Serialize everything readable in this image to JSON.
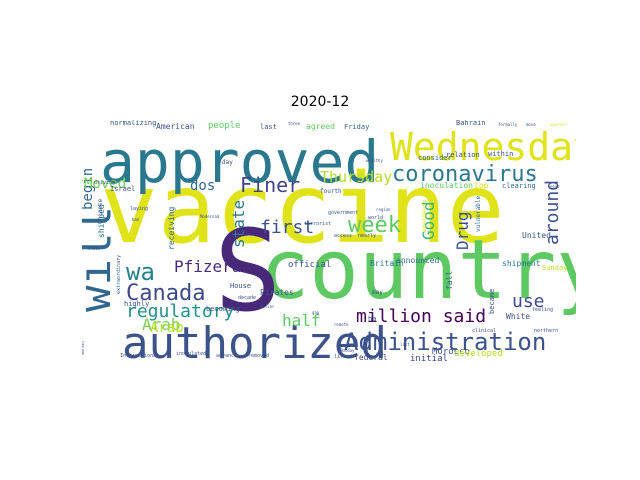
{
  "figure": {
    "title": "2020-12"
  },
  "words": [
    {
      "text": "vaccine",
      "weight": 1.0,
      "color": "#dfe318",
      "vertical": false
    },
    {
      "text": "country",
      "weight": 0.78,
      "color": "#5ec962",
      "vertical": false
    },
    {
      "text": "S",
      "weight": 0.75,
      "color": "#482878",
      "vertical": false
    },
    {
      "text": "approved",
      "weight": 0.65,
      "color": "#2a788e",
      "vertical": false
    },
    {
      "text": "authorized",
      "weight": 0.52,
      "color": "#3b528b",
      "vertical": false
    },
    {
      "text": "will",
      "weight": 0.45,
      "color": "#31688e",
      "vertical": true
    },
    {
      "text": "Wednesday",
      "weight": 0.45,
      "color": "#dfe318",
      "vertical": false
    },
    {
      "text": "Administration",
      "weight": 0.3,
      "color": "#3b528b",
      "vertical": false
    },
    {
      "text": "coronavirus",
      "weight": 0.25,
      "color": "#2a788e",
      "vertical": false
    },
    {
      "text": "Canada",
      "weight": 0.2,
      "color": "#3e4989",
      "vertical": false
    },
    {
      "text": "regulatory",
      "weight": 0.2,
      "color": "#21918c",
      "vertical": false
    },
    {
      "text": "wa",
      "weight": 0.22,
      "color": "#26828e",
      "vertical": false
    },
    {
      "text": "week",
      "weight": 0.2,
      "color": "#5ec962",
      "vertical": false
    },
    {
      "text": "Finer",
      "weight": 0.2,
      "color": "#414487",
      "vertical": false
    },
    {
      "text": "million said",
      "weight": 0.18,
      "color": "#440154",
      "vertical": false
    },
    {
      "text": "Thursday",
      "weight": 0.15,
      "color": "#b5de2b",
      "vertical": false
    },
    {
      "text": "around",
      "weight": 0.15,
      "color": "#3b528b",
      "vertical": true
    },
    {
      "text": "first",
      "weight": 0.15,
      "color": "#3b528b",
      "vertical": false
    },
    {
      "text": "Pfizerâ",
      "weight": 0.15,
      "color": "#472c7a",
      "vertical": false
    },
    {
      "text": "Arab",
      "weight": 0.14,
      "color": "#7ad151",
      "vertical": false
    },
    {
      "text": "half",
      "weight": 0.14,
      "color": "#5ec962",
      "vertical": false
    },
    {
      "text": "Drug",
      "weight": 0.13,
      "color": "#3b528b",
      "vertical": true
    },
    {
      "text": "Good",
      "weight": 0.13,
      "color": "#35b779",
      "vertical": true
    },
    {
      "text": "state",
      "weight": 0.13,
      "color": "#2a788e",
      "vertical": true
    },
    {
      "text": "use",
      "weight": 0.13,
      "color": "#3e4989",
      "vertical": false
    },
    {
      "text": "begin",
      "weight": 0.12,
      "color": "#31688e",
      "vertical": true
    },
    {
      "text": "dos",
      "weight": 0.12,
      "color": "#31688e",
      "vertical": false
    },
    {
      "text": "Moved",
      "weight": 0.12,
      "color": "#6ece58",
      "vertical": false
    },
    {
      "text": "Arab",
      "weight": 0.11,
      "color": "#b5de2b",
      "vertical": false
    },
    {
      "text": "people",
      "weight": 0.09,
      "color": "#5ec962",
      "vertical": false
    },
    {
      "text": "official",
      "weight": 0.08,
      "color": "#3b528b",
      "vertical": false
    },
    {
      "text": "Britain",
      "weight": 0.07,
      "color": "#2a788e",
      "vertical": false
    },
    {
      "text": "shipped",
      "weight": 0.07,
      "color": "#2a788e",
      "vertical": true
    },
    {
      "text": "federal",
      "weight": 0.07,
      "color": "#3e4989",
      "vertical": false
    },
    {
      "text": "initial",
      "weight": 0.07,
      "color": "#3e4989",
      "vertical": false
    },
    {
      "text": "Morocco",
      "weight": 0.07,
      "color": "#3b528b",
      "vertical": false
    },
    {
      "text": "developed",
      "weight": 0.07,
      "color": "#b5de2b",
      "vertical": false
    },
    {
      "text": "shipment",
      "weight": 0.06,
      "color": "#2a788e",
      "vertical": false
    },
    {
      "text": "fall",
      "weight": 0.06,
      "color": "#31688e",
      "vertical": true
    },
    {
      "text": "United",
      "weight": 0.06,
      "color": "#3b528b",
      "vertical": false
    },
    {
      "text": "White",
      "weight": 0.06,
      "color": "#3b528b",
      "vertical": false
    },
    {
      "text": "announced",
      "weight": 0.06,
      "color": "#31688e",
      "vertical": false
    },
    {
      "text": "Pirates",
      "weight": 0.06,
      "color": "#3b528b",
      "vertical": false
    },
    {
      "text": "receiving",
      "weight": 0.06,
      "color": "#31688e",
      "vertical": true
    },
    {
      "text": "agreed",
      "weight": 0.06,
      "color": "#5ec962",
      "vertical": false
    },
    {
      "text": "consider",
      "weight": 0.06,
      "color": "#31688e",
      "vertical": false
    },
    {
      "text": "inoculation",
      "weight": 0.06,
      "color": "#5ec962",
      "vertical": false
    },
    {
      "text": "top",
      "weight": 0.06,
      "color": "#dfe318",
      "vertical": false
    },
    {
      "text": "clearing",
      "weight": 0.06,
      "color": "#31688e",
      "vertical": false
    },
    {
      "text": "Bahrain",
      "weight": 0.06,
      "color": "#3b528b",
      "vertical": false
    },
    {
      "text": "American",
      "weight": 0.06,
      "color": "#3b528b",
      "vertical": false
    },
    {
      "text": "Friday",
      "weight": 0.05,
      "color": "#31688e",
      "vertical": false
    },
    {
      "text": "last",
      "weight": 0.05,
      "color": "#3b528b",
      "vertical": false
    },
    {
      "text": "normalizing",
      "weight": 0.05,
      "color": "#3b528b",
      "vertical": false
    },
    {
      "text": "relation",
      "weight": 0.05,
      "color": "#3b528b",
      "vertical": false
    },
    {
      "text": "within",
      "weight": 0.05,
      "color": "#3b528b",
      "vertical": false
    },
    {
      "text": "Israel",
      "weight": 0.05,
      "color": "#3b528b",
      "vertical": false
    },
    {
      "text": "House",
      "weight": 0.05,
      "color": "#3b528b",
      "vertical": false
    },
    {
      "text": "becoming",
      "weight": 0.05,
      "color": "#3b528b",
      "vertical": false
    },
    {
      "text": "highly",
      "weight": 0.05,
      "color": "#3b528b",
      "vertical": false
    },
    {
      "text": "ha",
      "weight": 0.05,
      "color": "#3b528b",
      "vertical": false
    },
    {
      "text": "became",
      "weight": 0.05,
      "color": "#3b528b",
      "vertical": true
    },
    {
      "text": "Sunday",
      "weight": 0.05,
      "color": "#b5de2b",
      "vertical": false
    },
    {
      "text": "may",
      "weight": 0.04,
      "color": "#3b528b",
      "vertical": false
    },
    {
      "text": "emergency",
      "weight": 0.04,
      "color": "#dfe318",
      "vertical": true
    },
    {
      "text": "vulnerable",
      "weight": 0.04,
      "color": "#31688e",
      "vertical": true
    },
    {
      "text": "day",
      "weight": 0.04,
      "color": "#3b528b",
      "vertical": false
    },
    {
      "text": "fourth",
      "weight": 0.04,
      "color": "#3b528b",
      "vertical": false
    },
    {
      "text": "Chinese",
      "weight": 0.04,
      "color": "#3b528b",
      "vertical": true
    },
    {
      "text": "extraordinary",
      "weight": 0.03,
      "color": "#31688e",
      "vertical": true
    },
    {
      "text": "driving",
      "weight": 0.03,
      "color": "#3b528b",
      "vertical": false
    },
    {
      "text": "laying",
      "weight": 0.03,
      "color": "#3b528b",
      "vertical": false
    },
    {
      "text": "decade",
      "weight": 0.03,
      "color": "#3b528b",
      "vertical": false
    },
    {
      "text": "clinical",
      "weight": 0.03,
      "color": "#3b528b",
      "vertical": false
    },
    {
      "text": "northern",
      "weight": 0.03,
      "color": "#3b528b",
      "vertical": false
    },
    {
      "text": "feeling",
      "weight": 0.03,
      "color": "#3b528b",
      "vertical": false
    },
    {
      "text": "inoculated",
      "weight": 0.03,
      "color": "#3b528b",
      "vertical": false
    },
    {
      "text": "International",
      "weight": 0.03,
      "color": "#3b528b",
      "vertical": false
    },
    {
      "text": "advance",
      "weight": 0.03,
      "color": "#3b528b",
      "vertical": false
    },
    {
      "text": "removed",
      "weight": 0.03,
      "color": "#3b528b",
      "vertical": false
    },
    {
      "text": "lifted",
      "weight": 0.03,
      "color": "#3b528b",
      "vertical": false
    },
    {
      "text": "government",
      "weight": 0.03,
      "color": "#3b528b",
      "vertical": false
    },
    {
      "text": "access",
      "weight": 0.03,
      "color": "#3b528b",
      "vertical": false
    },
    {
      "text": "nearly",
      "weight": 0.03,
      "color": "#3b528b",
      "vertical": false
    },
    {
      "text": "terrorist",
      "weight": 0.03,
      "color": "#3b528b",
      "vertical": false
    },
    {
      "text": "world",
      "weight": 0.03,
      "color": "#3b528b",
      "vertical": false
    },
    {
      "text": "Monday",
      "weight": 0.03,
      "color": "#3b528b",
      "vertical": false
    },
    {
      "text": "gap",
      "weight": 0.03,
      "color": "#3b528b",
      "vertical": false
    },
    {
      "text": "easier",
      "weight": 0.03,
      "color": "#3b528b",
      "vertical": false
    },
    {
      "text": "remote",
      "weight": 0.03,
      "color": "#3b528b",
      "vertical": false
    },
    {
      "text": "formally",
      "weight": 0.03,
      "color": "#3b528b",
      "vertical": false
    },
    {
      "text": "move",
      "weight": 0.03,
      "color": "#3b528b",
      "vertical": false
    },
    {
      "text": "sponsor",
      "weight": 0.03,
      "color": "#dfe318",
      "vertical": false
    },
    {
      "text": "Modernaâ",
      "weight": 0.03,
      "color": "#3b528b",
      "vertical": false
    },
    {
      "text": "next",
      "weight": 0.03,
      "color": "#3b528b",
      "vertical": false
    },
    {
      "text": "three",
      "weight": 0.03,
      "color": "#3b528b",
      "vertical": false
    },
    {
      "text": "list",
      "weight": 0.03,
      "color": "#3b528b",
      "vertical": false
    },
    {
      "text": "claim",
      "weight": 0.03,
      "color": "#3b528b",
      "vertical": false
    },
    {
      "text": "year",
      "weight": 0.03,
      "color": "#3b528b",
      "vertical": false
    },
    {
      "text": "market",
      "weight": 0.03,
      "color": "#3b528b",
      "vertical": true
    },
    {
      "text": "wealthy",
      "weight": 0.03,
      "color": "#3b528b",
      "vertical": false
    },
    {
      "text": "region",
      "weight": 0.03,
      "color": "#3b528b",
      "vertical": false
    },
    {
      "text": "ban",
      "weight": 0.03,
      "color": "#3b528b",
      "vertical": false
    },
    {
      "text": "end",
      "weight": 0.03,
      "color": "#3b528b",
      "vertical": false
    }
  ]
}
